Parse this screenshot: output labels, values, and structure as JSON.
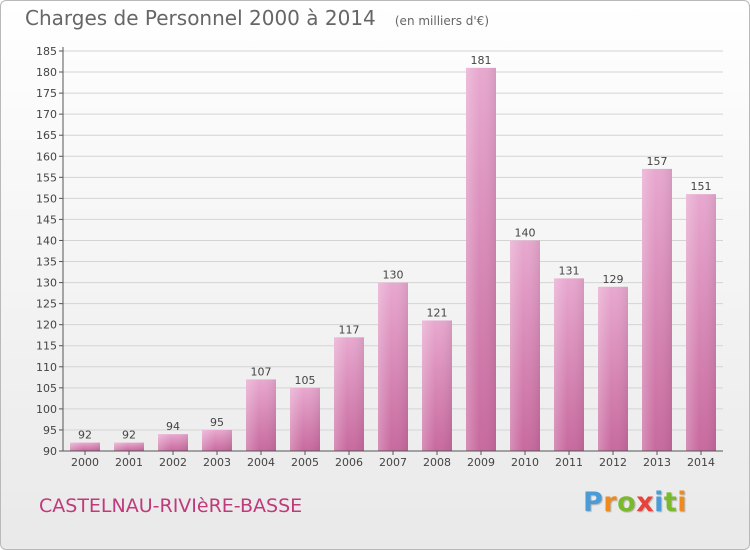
{
  "header": {
    "title": "Charges de Personnel 2000 à 2014",
    "unit": "(en milliers d'€)"
  },
  "footer": {
    "commune": "CASTELNAU-RIVIèRE-BASSE",
    "logo_text": "Proxiti"
  },
  "colors": {
    "bar_top": "#e8a8cf",
    "bar_bottom": "#c8699e",
    "title": "#666666",
    "commune": "#c0397c",
    "logo": [
      "#4a9bd6",
      "#f08a1c",
      "#7ab92c",
      "#e8423a",
      "#4a9bd6",
      "#7ab92c",
      "#f08a1c"
    ]
  },
  "chart_data": {
    "type": "bar",
    "categories": [
      "2000",
      "2001",
      "2002",
      "2003",
      "2004",
      "2005",
      "2006",
      "2007",
      "2008",
      "2009",
      "2010",
      "2011",
      "2012",
      "2013",
      "2014"
    ],
    "values": [
      92,
      92,
      94,
      95,
      107,
      105,
      117,
      130,
      121,
      181,
      140,
      131,
      129,
      157,
      151
    ],
    "data_labels": [
      "92",
      "92",
      "94",
      "95",
      "107",
      "105",
      "117",
      "130",
      "121",
      "181",
      "140",
      "131",
      "129",
      "157",
      "151"
    ],
    "yticks": [
      90,
      95,
      100,
      105,
      110,
      115,
      120,
      125,
      130,
      135,
      140,
      145,
      150,
      155,
      160,
      165,
      170,
      175,
      180,
      185
    ],
    "ylim": [
      90,
      185
    ],
    "grid": true,
    "legend": "none"
  }
}
